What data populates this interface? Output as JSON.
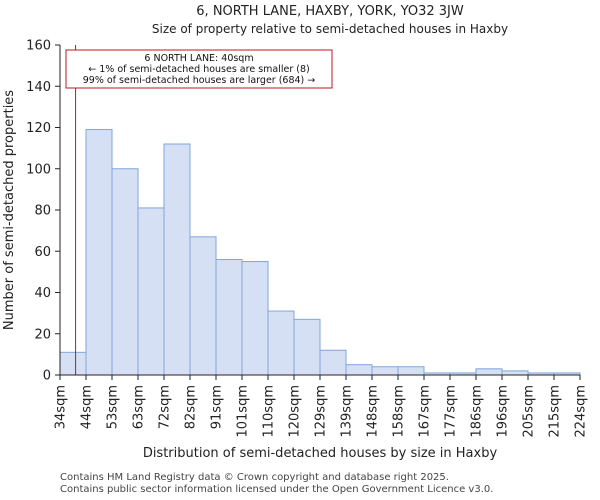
{
  "chart_data": {
    "type": "bar",
    "title": "6, NORTH LANE, HAXBY, YORK, YO32 3JW",
    "subtitle": "Size of property relative to semi-detached houses in Haxby",
    "xlabel": "Distribution of semi-detached houses by size in Haxby",
    "ylabel": "Number of semi-detached properties",
    "ylim": [
      0,
      160
    ],
    "yticks": [
      0,
      20,
      40,
      60,
      80,
      100,
      120,
      140,
      160
    ],
    "bin_edges": [
      "34sqm",
      "44sqm",
      "53sqm",
      "63sqm",
      "72sqm",
      "82sqm",
      "91sqm",
      "101sqm",
      "110sqm",
      "120sqm",
      "129sqm",
      "139sqm",
      "148sqm",
      "158sqm",
      "167sqm",
      "177sqm",
      "186sqm",
      "196sqm",
      "205sqm",
      "215sqm",
      "224sqm"
    ],
    "values": [
      11,
      119,
      100,
      81,
      112,
      67,
      56,
      55,
      31,
      27,
      12,
      5,
      4,
      4,
      1,
      1,
      3,
      2,
      1,
      1
    ],
    "bar_color": "#d6e0f5",
    "bar_edge": "#7ea6d8",
    "marker": {
      "value": 40,
      "bin_from": 34,
      "bin_to": 44,
      "color": "#c0141c",
      "label_lines": [
        "6 NORTH LANE: 40sqm",
        "← 1% of semi-detached houses are smaller (8)",
        "99% of semi-detached houses are larger (684) →"
      ]
    },
    "grid": false
  },
  "footer": {
    "line1": "Contains HM Land Registry data © Crown copyright and database right 2025.",
    "line2": "Contains public sector information licensed under the Open Government Licence v3.0."
  }
}
